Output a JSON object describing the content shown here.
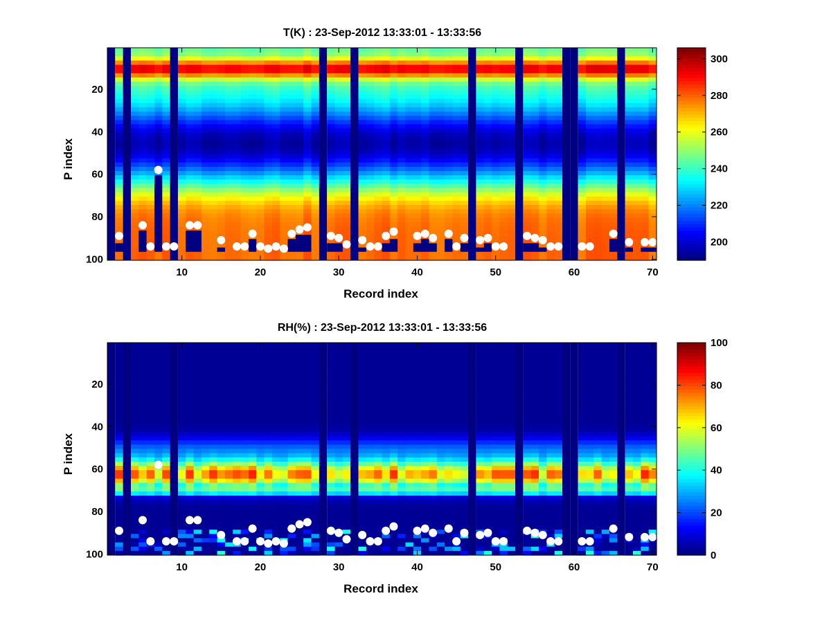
{
  "chart_data": [
    {
      "type": "heatmap",
      "title": "T(K) : 23-Sep-2012 13:33:01 - 13:33:56",
      "xlabel": "Record index",
      "ylabel": "P index",
      "xlim": [
        0.5,
        70.5
      ],
      "ylim": [
        1,
        100
      ],
      "y_reversed": true,
      "xticks": [
        10,
        20,
        30,
        40,
        50,
        60,
        70
      ],
      "yticks": [
        20,
        40,
        60,
        80,
        100
      ],
      "colormap": "jet",
      "color_range": [
        190,
        306
      ],
      "colorbar_ticks": [
        200,
        220,
        240,
        260,
        280,
        300
      ],
      "missing_records": [
        1,
        3,
        9,
        28,
        32,
        47,
        53,
        59,
        60,
        66
      ],
      "profile_description": "warm layer near P index 8-12 (~280-300 K), coldest near P index 45 (~195 K), warming to ~280 K below P index 75",
      "markers": {
        "color": "#ffffff",
        "points": [
          {
            "x": 2,
            "y": 89
          },
          {
            "x": 5,
            "y": 84
          },
          {
            "x": 6,
            "y": 94
          },
          {
            "x": 7,
            "y": 58
          },
          {
            "x": 8,
            "y": 94
          },
          {
            "x": 9,
            "y": 94
          },
          {
            "x": 11,
            "y": 84
          },
          {
            "x": 12,
            "y": 84
          },
          {
            "x": 15,
            "y": 91
          },
          {
            "x": 17,
            "y": 94
          },
          {
            "x": 18,
            "y": 94
          },
          {
            "x": 19,
            "y": 88
          },
          {
            "x": 20,
            "y": 94
          },
          {
            "x": 21,
            "y": 95
          },
          {
            "x": 22,
            "y": 94
          },
          {
            "x": 23,
            "y": 95
          },
          {
            "x": 24,
            "y": 88
          },
          {
            "x": 25,
            "y": 86
          },
          {
            "x": 26,
            "y": 85
          },
          {
            "x": 29,
            "y": 89
          },
          {
            "x": 30,
            "y": 90
          },
          {
            "x": 31,
            "y": 93
          },
          {
            "x": 33,
            "y": 91
          },
          {
            "x": 34,
            "y": 94
          },
          {
            "x": 35,
            "y": 94
          },
          {
            "x": 36,
            "y": 89
          },
          {
            "x": 37,
            "y": 87
          },
          {
            "x": 40,
            "y": 89
          },
          {
            "x": 41,
            "y": 88
          },
          {
            "x": 42,
            "y": 90
          },
          {
            "x": 44,
            "y": 88
          },
          {
            "x": 45,
            "y": 94
          },
          {
            "x": 46,
            "y": 90
          },
          {
            "x": 48,
            "y": 91
          },
          {
            "x": 49,
            "y": 90
          },
          {
            "x": 50,
            "y": 94
          },
          {
            "x": 51,
            "y": 94
          },
          {
            "x": 54,
            "y": 89
          },
          {
            "x": 55,
            "y": 90
          },
          {
            "x": 56,
            "y": 91
          },
          {
            "x": 57,
            "y": 94
          },
          {
            "x": 58,
            "y": 94
          },
          {
            "x": 61,
            "y": 94
          },
          {
            "x": 62,
            "y": 94
          },
          {
            "x": 65,
            "y": 88
          },
          {
            "x": 67,
            "y": 92
          },
          {
            "x": 69,
            "y": 92
          },
          {
            "x": 70,
            "y": 92
          }
        ]
      }
    },
    {
      "type": "heatmap",
      "title": "RH(%) : 23-Sep-2012 13:33:01 - 13:33:56",
      "xlabel": "Record index",
      "ylabel": "P index",
      "xlim": [
        0.5,
        70.5
      ],
      "ylim": [
        1,
        100
      ],
      "y_reversed": true,
      "xticks": [
        10,
        20,
        30,
        40,
        50,
        60,
        70
      ],
      "yticks": [
        20,
        40,
        60,
        80,
        100
      ],
      "colormap": "jet",
      "color_range": [
        0,
        100
      ],
      "colorbar_ticks": [
        0,
        20,
        40,
        60,
        80,
        100
      ],
      "missing_records": [
        1,
        3,
        9,
        28,
        32,
        47,
        53,
        59,
        60,
        66
      ],
      "profile_description": "near 0% above P index 40, moist band ~60-80% between P index 55 and 70 peaking ~95% near P index 70, mostly dry below with patchy moist cells near the surface",
      "markers": {
        "color": "#ffffff",
        "points": [
          {
            "x": 2,
            "y": 89
          },
          {
            "x": 5,
            "y": 84
          },
          {
            "x": 6,
            "y": 94
          },
          {
            "x": 7,
            "y": 58
          },
          {
            "x": 8,
            "y": 94
          },
          {
            "x": 9,
            "y": 94
          },
          {
            "x": 11,
            "y": 84
          },
          {
            "x": 12,
            "y": 84
          },
          {
            "x": 15,
            "y": 91
          },
          {
            "x": 17,
            "y": 94
          },
          {
            "x": 18,
            "y": 94
          },
          {
            "x": 19,
            "y": 88
          },
          {
            "x": 20,
            "y": 94
          },
          {
            "x": 21,
            "y": 95
          },
          {
            "x": 22,
            "y": 94
          },
          {
            "x": 23,
            "y": 95
          },
          {
            "x": 24,
            "y": 88
          },
          {
            "x": 25,
            "y": 86
          },
          {
            "x": 26,
            "y": 85
          },
          {
            "x": 29,
            "y": 89
          },
          {
            "x": 30,
            "y": 90
          },
          {
            "x": 31,
            "y": 93
          },
          {
            "x": 33,
            "y": 91
          },
          {
            "x": 34,
            "y": 94
          },
          {
            "x": 35,
            "y": 94
          },
          {
            "x": 36,
            "y": 89
          },
          {
            "x": 37,
            "y": 87
          },
          {
            "x": 40,
            "y": 89
          },
          {
            "x": 41,
            "y": 88
          },
          {
            "x": 42,
            "y": 90
          },
          {
            "x": 44,
            "y": 88
          },
          {
            "x": 45,
            "y": 94
          },
          {
            "x": 46,
            "y": 90
          },
          {
            "x": 48,
            "y": 91
          },
          {
            "x": 49,
            "y": 90
          },
          {
            "x": 50,
            "y": 94
          },
          {
            "x": 51,
            "y": 94
          },
          {
            "x": 54,
            "y": 89
          },
          {
            "x": 55,
            "y": 90
          },
          {
            "x": 56,
            "y": 91
          },
          {
            "x": 57,
            "y": 94
          },
          {
            "x": 58,
            "y": 94
          },
          {
            "x": 61,
            "y": 94
          },
          {
            "x": 62,
            "y": 94
          },
          {
            "x": 65,
            "y": 88
          },
          {
            "x": 67,
            "y": 92
          },
          {
            "x": 69,
            "y": 92
          },
          {
            "x": 70,
            "y": 92
          }
        ]
      }
    }
  ]
}
